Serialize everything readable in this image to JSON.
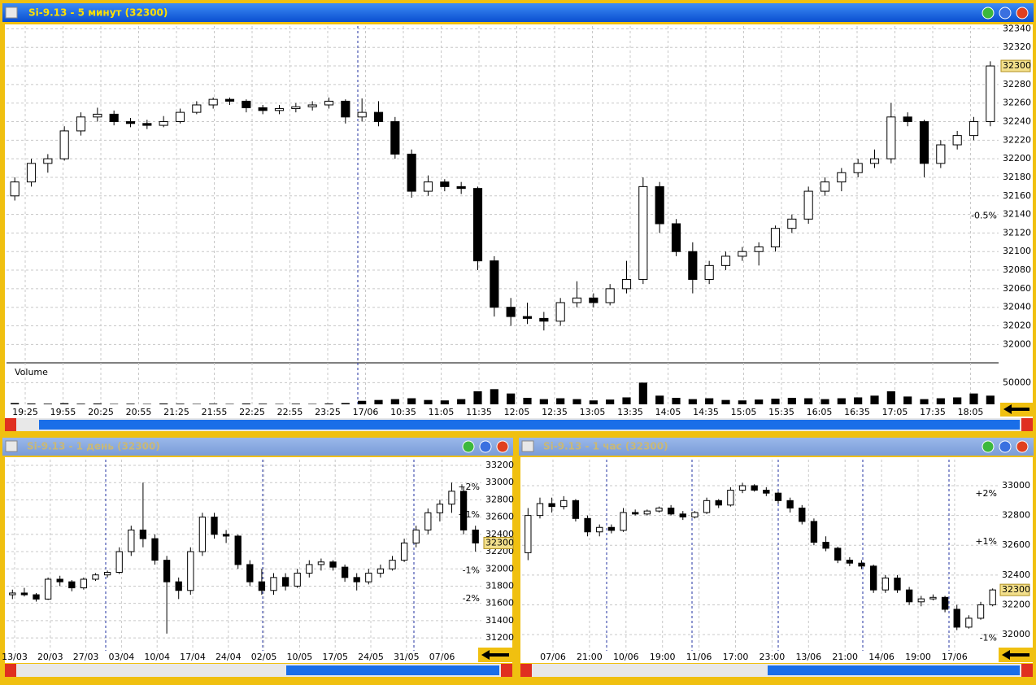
{
  "windows": [
    {
      "title": "Si-9.13 - 5 минут (32300)",
      "chart": {
        "type": "candlestick",
        "categories": [
          "19:25",
          "19:55",
          "20:25",
          "20:55",
          "21:25",
          "21:55",
          "22:25",
          "22:55",
          "23:25",
          "17/06",
          "10:35",
          "11:05",
          "11:35",
          "12:05",
          "12:35",
          "13:05",
          "13:35",
          "14:05",
          "14:35",
          "15:05",
          "15:35",
          "16:05",
          "16:35",
          "17:05",
          "17:35",
          "18:05"
        ],
        "ylim": [
          31981,
          32343
        ],
        "yticks": [
          32000,
          32020,
          32040,
          32060,
          32080,
          32100,
          32120,
          32140,
          32160,
          32180,
          32200,
          32220,
          32240,
          32260,
          32280,
          32300,
          32320,
          32340
        ],
        "last_price": 32300,
        "annotations": [
          {
            "value": -0.5,
            "label": "-0.5%"
          }
        ],
        "candles": [
          [
            32160,
            32180,
            32155,
            32175
          ],
          [
            32175,
            32200,
            32170,
            32195
          ],
          [
            32195,
            32205,
            32185,
            32200
          ],
          [
            32200,
            32235,
            32198,
            32230
          ],
          [
            32230,
            32250,
            32225,
            32245
          ],
          [
            32245,
            32255,
            32240,
            32248
          ],
          [
            32248,
            32252,
            32236,
            32240
          ],
          [
            32240,
            32244,
            32234,
            32238
          ],
          [
            32238,
            32242,
            32232,
            32236
          ],
          [
            32236,
            32246,
            32234,
            32240
          ],
          [
            32240,
            32254,
            32238,
            32250
          ],
          [
            32250,
            32262,
            32248,
            32258
          ],
          [
            32258,
            32266,
            32254,
            32264
          ],
          [
            32264,
            32266,
            32258,
            32262
          ],
          [
            32262,
            32264,
            32250,
            32255
          ],
          [
            32255,
            32258,
            32248,
            32252
          ],
          [
            32252,
            32258,
            32248,
            32254
          ],
          [
            32254,
            32260,
            32250,
            32256
          ],
          [
            32256,
            32262,
            32252,
            32258
          ],
          [
            32258,
            32266,
            32254,
            32262
          ],
          [
            32262,
            32264,
            32238,
            32245
          ],
          [
            32245,
            32265,
            32240,
            32250
          ],
          [
            32250,
            32262,
            32235,
            32240
          ],
          [
            32240,
            32245,
            32200,
            32205
          ],
          [
            32205,
            32210,
            32158,
            32165
          ],
          [
            32165,
            32182,
            32160,
            32175
          ],
          [
            32175,
            32178,
            32165,
            32170
          ],
          [
            32170,
            32175,
            32162,
            32168
          ],
          [
            32168,
            32170,
            32080,
            32090
          ],
          [
            32090,
            32095,
            32030,
            32040
          ],
          [
            32040,
            32050,
            32020,
            32030
          ],
          [
            32030,
            32045,
            32022,
            32028
          ],
          [
            32028,
            32035,
            32015,
            32025
          ],
          [
            32025,
            32050,
            32020,
            32045
          ],
          [
            32045,
            32068,
            32040,
            32050
          ],
          [
            32050,
            32055,
            32040,
            32045
          ],
          [
            32045,
            32065,
            32042,
            32060
          ],
          [
            32060,
            32090,
            32055,
            32070
          ],
          [
            32070,
            32180,
            32065,
            32170
          ],
          [
            32170,
            32175,
            32120,
            32130
          ],
          [
            32130,
            32135,
            32095,
            32100
          ],
          [
            32100,
            32110,
            32055,
            32070
          ],
          [
            32070,
            32090,
            32065,
            32085
          ],
          [
            32085,
            32100,
            32080,
            32095
          ],
          [
            32095,
            32105,
            32090,
            32100
          ],
          [
            32100,
            32110,
            32085,
            32105
          ],
          [
            32105,
            32128,
            32100,
            32125
          ],
          [
            32125,
            32140,
            32120,
            32135
          ],
          [
            32135,
            32170,
            32130,
            32165
          ],
          [
            32165,
            32180,
            32160,
            32175
          ],
          [
            32175,
            32190,
            32165,
            32185
          ],
          [
            32185,
            32200,
            32180,
            32195
          ],
          [
            32195,
            32210,
            32190,
            32200
          ],
          [
            32200,
            32260,
            32195,
            32245
          ],
          [
            32245,
            32250,
            32235,
            32240
          ],
          [
            32240,
            32242,
            32180,
            32195
          ],
          [
            32195,
            32220,
            32190,
            32215
          ],
          [
            32215,
            32230,
            32210,
            32225
          ],
          [
            32225,
            32245,
            32220,
            32240
          ],
          [
            32240,
            32305,
            32235,
            32300
          ]
        ],
        "volume_label": "Volume",
        "volume_ylim": [
          0,
          90000
        ],
        "volume_yticks": [
          50000
        ],
        "volumes": [
          3000,
          2000,
          1500,
          2500,
          1500,
          2000,
          1000,
          1500,
          1000,
          2000,
          1500,
          1000,
          1500,
          1000,
          2000,
          1500,
          1000,
          1500,
          1000,
          2000,
          3000,
          8000,
          10000,
          12000,
          14000,
          10000,
          9000,
          12000,
          30000,
          35000,
          25000,
          15000,
          12000,
          14000,
          12000,
          9000,
          11000,
          16000,
          50000,
          20000,
          15000,
          12000,
          14000,
          10000,
          9000,
          11000,
          13000,
          15000,
          14000,
          12000,
          14000,
          16000,
          20000,
          30000,
          18000,
          12000,
          14000,
          16000,
          25000,
          20000
        ]
      }
    },
    {
      "title": "Si-9.13 - 1 день (32300)",
      "chart": {
        "type": "candlestick",
        "categories": [
          "13/03",
          "20/03",
          "27/03",
          "03/04",
          "10/04",
          "17/04",
          "24/04",
          "02/05",
          "10/05",
          "17/05",
          "24/05",
          "31/05",
          "07/06"
        ],
        "ylim": [
          31050,
          33266
        ],
        "yticks": [
          31200,
          31400,
          31600,
          31800,
          32000,
          32200,
          32400,
          32600,
          32800,
          33000,
          33200
        ],
        "last_price": 32300,
        "annotations": [
          {
            "value": 2,
            "label": "+2%"
          },
          {
            "value": 1,
            "label": "+1%"
          },
          {
            "value": -1,
            "label": "-1%"
          },
          {
            "value": -2,
            "label": "-2%"
          }
        ],
        "candles": [
          [
            31700,
            31760,
            31650,
            31720
          ],
          [
            31720,
            31780,
            31680,
            31700
          ],
          [
            31700,
            31720,
            31620,
            31650
          ],
          [
            31650,
            31900,
            31640,
            31880
          ],
          [
            31880,
            31920,
            31800,
            31850
          ],
          [
            31850,
            31870,
            31740,
            31780
          ],
          [
            31780,
            31900,
            31760,
            31880
          ],
          [
            31880,
            31950,
            31860,
            31930
          ],
          [
            31930,
            31980,
            31900,
            31960
          ],
          [
            31960,
            32250,
            31940,
            32200
          ],
          [
            32200,
            32500,
            32150,
            32450
          ],
          [
            32450,
            33000,
            32250,
            32350
          ],
          [
            32350,
            32400,
            32050,
            32100
          ],
          [
            32100,
            32150,
            31250,
            31850
          ],
          [
            31850,
            31900,
            31650,
            31750
          ],
          [
            31750,
            32250,
            31700,
            32200
          ],
          [
            32200,
            32650,
            32150,
            32600
          ],
          [
            32600,
            32650,
            32350,
            32400
          ],
          [
            32400,
            32450,
            32300,
            32380
          ],
          [
            32380,
            32400,
            32000,
            32050
          ],
          [
            32050,
            32100,
            31800,
            31850
          ],
          [
            31850,
            32000,
            31700,
            31750
          ],
          [
            31750,
            31950,
            31700,
            31900
          ],
          [
            31900,
            31950,
            31750,
            31800
          ],
          [
            31800,
            32000,
            31780,
            31950
          ],
          [
            31950,
            32100,
            31900,
            32050
          ],
          [
            32050,
            32120,
            31980,
            32080
          ],
          [
            32080,
            32100,
            31980,
            32020
          ],
          [
            32020,
            32050,
            31850,
            31900
          ],
          [
            31900,
            31950,
            31750,
            31850
          ],
          [
            31850,
            32000,
            31820,
            31950
          ],
          [
            31950,
            32050,
            31900,
            32000
          ],
          [
            32000,
            32150,
            31980,
            32100
          ],
          [
            32100,
            32350,
            32080,
            32300
          ],
          [
            32300,
            32500,
            32250,
            32450
          ],
          [
            32450,
            32700,
            32400,
            32650
          ],
          [
            32650,
            32800,
            32550,
            32750
          ],
          [
            32750,
            33000,
            32650,
            32900
          ],
          [
            32900,
            32950,
            32400,
            32450
          ],
          [
            32450,
            32500,
            32200,
            32300
          ]
        ]
      }
    },
    {
      "title": "Si-9.13 - 1 час (32300)",
      "chart": {
        "type": "candlestick",
        "categories": [
          "07/06",
          "21:00",
          "10/06",
          "19:00",
          "11/06",
          "17:00",
          "23:00",
          "13/06",
          "21:00",
          "14/06",
          "19:00",
          "17/06"
        ],
        "ylim": [
          31891,
          33175
        ],
        "yticks": [
          32000,
          32200,
          32400,
          32600,
          32800,
          33000
        ],
        "last_price": 32300,
        "annotations": [
          {
            "value": 2,
            "label": "+2%"
          },
          {
            "value": 1,
            "label": "+1%"
          },
          {
            "value": -1,
            "label": "-1%"
          }
        ],
        "candles": [
          [
            32550,
            32850,
            32500,
            32800
          ],
          [
            32800,
            32920,
            32780,
            32880
          ],
          [
            32880,
            32920,
            32820,
            32860
          ],
          [
            32860,
            32930,
            32840,
            32900
          ],
          [
            32900,
            32910,
            32760,
            32780
          ],
          [
            32780,
            32800,
            32660,
            32690
          ],
          [
            32690,
            32740,
            32660,
            32720
          ],
          [
            32720,
            32740,
            32680,
            32700
          ],
          [
            32700,
            32850,
            32690,
            32820
          ],
          [
            32820,
            32840,
            32800,
            32810
          ],
          [
            32810,
            32840,
            32800,
            32830
          ],
          [
            32830,
            32860,
            32820,
            32850
          ],
          [
            32850,
            32870,
            32800,
            32810
          ],
          [
            32810,
            32830,
            32770,
            32790
          ],
          [
            32790,
            32830,
            32780,
            32820
          ],
          [
            32820,
            32920,
            32810,
            32900
          ],
          [
            32900,
            32910,
            32850,
            32870
          ],
          [
            32870,
            32990,
            32860,
            32970
          ],
          [
            32970,
            33020,
            32950,
            33000
          ],
          [
            33000,
            33010,
            32960,
            32970
          ],
          [
            32970,
            32990,
            32930,
            32950
          ],
          [
            32950,
            32960,
            32880,
            32900
          ],
          [
            32900,
            32920,
            32820,
            32850
          ],
          [
            32850,
            32870,
            32740,
            32760
          ],
          [
            32760,
            32780,
            32600,
            32620
          ],
          [
            32620,
            32660,
            32560,
            32580
          ],
          [
            32580,
            32590,
            32480,
            32500
          ],
          [
            32500,
            32520,
            32460,
            32480
          ],
          [
            32480,
            32500,
            32440,
            32460
          ],
          [
            32460,
            32470,
            32280,
            32300
          ],
          [
            32300,
            32400,
            32280,
            32380
          ],
          [
            32380,
            32400,
            32280,
            32300
          ],
          [
            32300,
            32320,
            32200,
            32220
          ],
          [
            32220,
            32260,
            32190,
            32240
          ],
          [
            32240,
            32270,
            32230,
            32250
          ],
          [
            32250,
            32260,
            32150,
            32170
          ],
          [
            32170,
            32200,
            32030,
            32050
          ],
          [
            32050,
            32130,
            32040,
            32110
          ],
          [
            32110,
            32220,
            32100,
            32200
          ],
          [
            32200,
            32310,
            32190,
            32300
          ]
        ]
      }
    }
  ]
}
